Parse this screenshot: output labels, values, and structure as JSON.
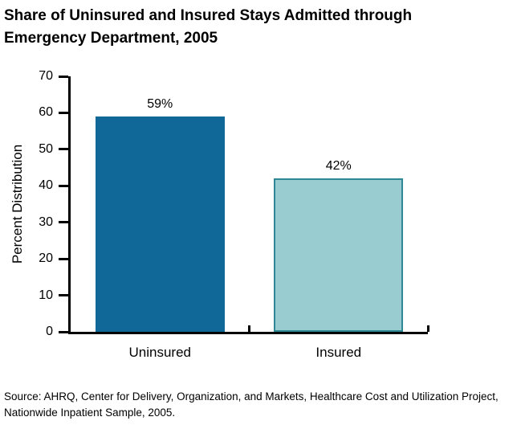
{
  "chart_data": {
    "type": "bar",
    "title": "Share of Uninsured and Insured Stays Admitted through Emergency Department, 2005",
    "title_lines": [
      "Share of Uninsured and Insured Stays Admitted through",
      "Emergency Department, 2005"
    ],
    "categories": [
      "Uninsured",
      "Insured"
    ],
    "values": [
      59,
      42
    ],
    "value_labels": [
      "59%",
      "42%"
    ],
    "bar_colors": [
      {
        "fill": "#0f6898",
        "border": "#0f6898"
      },
      {
        "fill": "#99ccd1",
        "border": "#2e8795"
      }
    ],
    "xlabel": "",
    "ylabel": "Percent Distribution",
    "ylim": [
      0,
      70
    ],
    "yticks": [
      0,
      10,
      20,
      30,
      40,
      50,
      60,
      70
    ],
    "grid": false,
    "legend_position": "none"
  },
  "source": {
    "lines": [
      "Source:  AHRQ, Center for Delivery, Organization, and Markets, Healthcare Cost and Utilization Project,",
      "Nationwide Inpatient Sample, 2005."
    ]
  },
  "colors": {
    "axis": "#000000",
    "text": "#000000",
    "background": "#ffffff"
  }
}
